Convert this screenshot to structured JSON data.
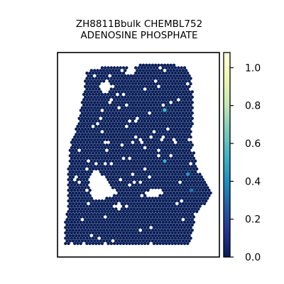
{
  "chart_data": {
    "type": "scatter",
    "title_lines": [
      "ZH8811Bbulk CHEMBL752",
      "ADENOSINE PHOSPHATE"
    ],
    "xlabel": "",
    "ylabel": "",
    "axes_ticks": false,
    "colorbar": {
      "colormap": "YlGnBu",
      "range": [
        0.0,
        1.08
      ],
      "ticks": [
        "0.0",
        "0.2",
        "0.4",
        "0.6",
        "0.8",
        "1.0"
      ],
      "tick_values": [
        0.0,
        0.2,
        0.4,
        0.6,
        0.8,
        1.0
      ]
    },
    "background_value": 0.0,
    "highlighted_points": [
      {
        "x": 232,
        "y": 155,
        "value": 0.55
      },
      {
        "x": 232,
        "y": 227,
        "value": 0.5
      },
      {
        "x": 265,
        "y": 245,
        "value": 0.42
      },
      {
        "x": 270,
        "y": 268,
        "value": 0.35
      }
    ],
    "colors": {
      "background_spot": "#081d58",
      "spot_outline": "#0c2a70"
    }
  }
}
